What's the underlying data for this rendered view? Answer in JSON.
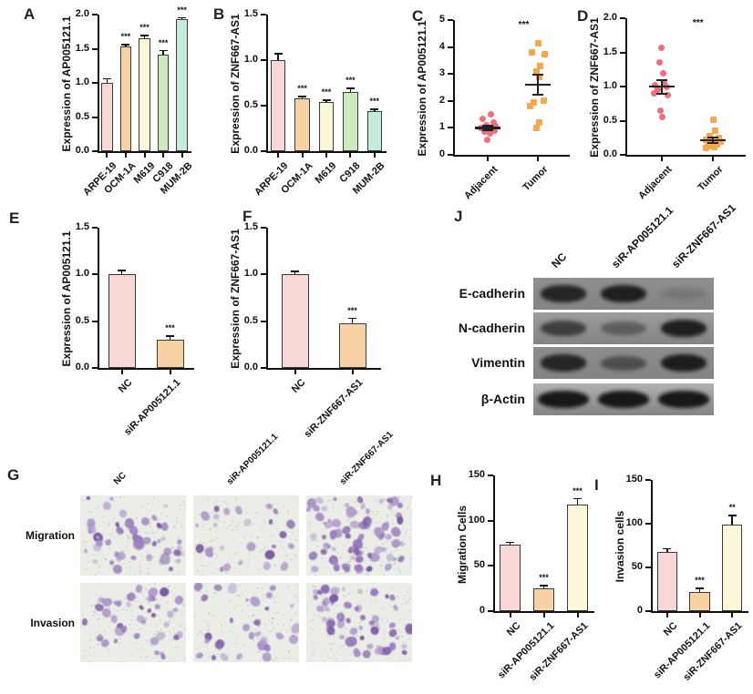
{
  "palette": {
    "pink": "#f8d8d6",
    "peach": "#f8d2a2",
    "cream": "#fbf8d8",
    "green": "#cdeabd",
    "mint": "#c6ebd9",
    "dot_pink": "#f06d7a",
    "dot_orange": "#f4a74b",
    "axis": "#111111",
    "blot_band": "#141414",
    "transwell_bg": "#eaeee6",
    "cell_purple": [
      "#9b7ec2",
      "#8766ad",
      "#a78fc8",
      "#7a58a0",
      "#b49fd0"
    ]
  },
  "figure": {
    "panels": {
      "A": {
        "letter": "A",
        "type": "bar",
        "ylabel": "Expression of AP005121.1",
        "ymax": 2.0,
        "yticks": [
          "0.0",
          "0.5",
          "1.0",
          "1.5",
          "2.0"
        ],
        "categories": [
          "ARPE-19",
          "OCM-1A",
          "M619",
          "C918",
          "MUM-2B"
        ],
        "values": [
          1.0,
          1.53,
          1.66,
          1.41,
          1.93
        ],
        "errors": [
          0.06,
          0.03,
          0.03,
          0.06,
          0.02
        ],
        "sig": [
          "",
          "***",
          "***",
          "***",
          "***"
        ],
        "bar_colors": [
          "pink",
          "peach",
          "cream",
          "green",
          "mint"
        ]
      },
      "B": {
        "letter": "B",
        "type": "bar",
        "ylabel": "Expression of ZNF667-AS1",
        "ymax": 1.5,
        "yticks": [
          "0.0",
          "0.5",
          "1.0",
          "1.5"
        ],
        "categories": [
          "ARPE-19",
          "OCM-1A",
          "M619",
          "C918",
          "MUM-2B"
        ],
        "values": [
          1.0,
          0.58,
          0.54,
          0.65,
          0.44
        ],
        "errors": [
          0.07,
          0.02,
          0.02,
          0.04,
          0.02
        ],
        "sig": [
          "",
          "***",
          "***",
          "***",
          "***"
        ],
        "bar_colors": [
          "pink",
          "peach",
          "cream",
          "green",
          "mint"
        ]
      },
      "C": {
        "letter": "C",
        "type": "scatter",
        "ylabel": "Expression of AP005121.1",
        "ymax": 5,
        "yticks": [
          "0",
          "1",
          "2",
          "3",
          "4",
          "5"
        ],
        "sig": "***",
        "groups": [
          {
            "name": "Adjacent",
            "marker": "circle",
            "color": "dot_pink",
            "mean": 1.0,
            "sem": 0.09,
            "values": [
              1.5,
              1.35,
              1.2,
              1.1,
              1.05,
              1.0,
              0.95,
              0.9,
              0.85,
              0.8,
              0.55
            ],
            "jitter": [
              3,
              -6,
              6,
              -2,
              8,
              -8,
              0,
              7,
              -4,
              2,
              -1
            ]
          },
          {
            "name": "Tumor",
            "marker": "square",
            "color": "dot_orange",
            "mean": 2.6,
            "sem": 0.36,
            "values": [
              4.15,
              3.8,
              3.75,
              3.3,
              3.1,
              2.9,
              2.0,
              1.95,
              1.8,
              1.2,
              1.0
            ],
            "jitter": [
              0,
              -7,
              7,
              2,
              -2,
              1,
              6,
              -5,
              -9,
              1,
              -2
            ]
          }
        ]
      },
      "D": {
        "letter": "D",
        "type": "scatter",
        "ylabel": "Expression of ZNF667-AS1",
        "ymax": 2.0,
        "yticks": [
          "0.0",
          "0.5",
          "1.0",
          "1.5",
          "2.0"
        ],
        "sig": "***",
        "groups": [
          {
            "name": "Adjacent",
            "marker": "circle",
            "color": "dot_pink",
            "mean": 1.0,
            "sem": 0.1,
            "values": [
              1.57,
              1.35,
              1.2,
              1.05,
              1.02,
              1.0,
              0.95,
              0.9,
              0.88,
              0.65,
              0.55
            ],
            "jitter": [
              0,
              -2,
              2,
              3,
              -7,
              6,
              -4,
              -8,
              7,
              -1,
              1
            ]
          },
          {
            "name": "Tumor",
            "marker": "square",
            "color": "dot_orange",
            "mean": 0.22,
            "sem": 0.04,
            "values": [
              0.52,
              0.35,
              0.27,
              0.25,
              0.22,
              0.2,
              0.18,
              0.15,
              0.13,
              0.12,
              0.1
            ],
            "jitter": [
              0,
              2,
              -4,
              6,
              -8,
              8,
              -2,
              4,
              -6,
              1,
              -8
            ]
          }
        ]
      },
      "E": {
        "letter": "E",
        "type": "bar",
        "ylabel": "Expression of AP005121.1",
        "ymax": 1.5,
        "yticks": [
          "0.0",
          "0.5",
          "1.0",
          "1.5"
        ],
        "categories": [
          "NC",
          "siR-AP005121.1"
        ],
        "values": [
          1.0,
          0.3
        ],
        "errors": [
          0.04,
          0.04
        ],
        "sig": [
          "",
          "***"
        ],
        "bar_colors": [
          "pink",
          "peach"
        ]
      },
      "F": {
        "letter": "F",
        "type": "bar",
        "ylabel": "Expression of ZNF667-AS1",
        "ymax": 1.5,
        "yticks": [
          "0.0",
          "0.5",
          "1.0",
          "1.5"
        ],
        "categories": [
          "NC",
          "siR-ZNF667-AS1"
        ],
        "values": [
          1.0,
          0.48
        ],
        "errors": [
          0.03,
          0.05
        ],
        "sig": [
          "",
          "***"
        ],
        "bar_colors": [
          "pink",
          "peach"
        ]
      },
      "G": {
        "letter": "G",
        "type": "transwell",
        "col_labels": [
          "NC",
          "siR-AP005121.1",
          "siR-ZNF667-AS1"
        ],
        "row_labels": [
          "Migration",
          "Invasion"
        ],
        "tiles": [
          [
            {
              "cells": 48
            },
            {
              "cells": 26
            },
            {
              "cells": 80
            }
          ],
          [
            {
              "cells": 40
            },
            {
              "cells": 30
            },
            {
              "cells": 55
            }
          ]
        ]
      },
      "H": {
        "letter": "H",
        "type": "bar",
        "ylabel": "Migration Cells",
        "ymax": 150,
        "yticks": [
          "0",
          "50",
          "100",
          "150"
        ],
        "categories": [
          "NC",
          "siR-AP005121.1",
          "siR-ZNF667-AS1"
        ],
        "values": [
          73,
          25,
          118
        ],
        "errors": [
          3,
          3,
          6
        ],
        "sig": [
          "",
          "***",
          "***"
        ],
        "bar_colors": [
          "pink",
          "peach",
          "cream"
        ]
      },
      "I": {
        "letter": "I",
        "type": "bar",
        "ylabel": "Invasion cells",
        "ymax": 150,
        "yticks": [
          "0",
          "50",
          "100",
          "150"
        ],
        "categories": [
          "NC",
          "siR-AP005121.1",
          "siR-ZNF667-AS1"
        ],
        "values": [
          68,
          22,
          99
        ],
        "errors": [
          3,
          4,
          10
        ],
        "sig": [
          "",
          "***",
          "**"
        ],
        "bar_colors": [
          "pink",
          "peach",
          "cream"
        ]
      },
      "J": {
        "letter": "J",
        "type": "blot",
        "col_labels": [
          "NC",
          "siR-AP005121.1",
          "siR-ZNF667-AS1"
        ],
        "rows": [
          {
            "label": "E-cadherin",
            "bg": "#8f8f8f",
            "bands": [
              0.85,
              0.9,
              0.16
            ]
          },
          {
            "label": "N-cadherin",
            "bg": "#9c9c9c",
            "bands": [
              0.65,
              0.4,
              0.9
            ]
          },
          {
            "label": "Vimentin",
            "bg": "#8d8d8d",
            "bands": [
              0.85,
              0.5,
              0.92
            ]
          },
          {
            "label": "β-Actin",
            "bg": "#b2b2b2",
            "bands": [
              0.97,
              0.97,
              0.97
            ]
          }
        ]
      }
    }
  },
  "chart_data": [
    {
      "panel": "A",
      "type": "bar",
      "title": "",
      "ylabel": "Expression of AP005121.1",
      "ylim": [
        0,
        2.0
      ],
      "categories": [
        "ARPE-19",
        "OCM-1A",
        "M619",
        "C918",
        "MUM-2B"
      ],
      "values": [
        1.0,
        1.53,
        1.66,
        1.41,
        1.93
      ],
      "errors": [
        0.06,
        0.03,
        0.03,
        0.06,
        0.02
      ],
      "significance": [
        "",
        "***",
        "***",
        "***",
        "***"
      ]
    },
    {
      "panel": "B",
      "type": "bar",
      "ylabel": "Expression of ZNF667-AS1",
      "ylim": [
        0,
        1.5
      ],
      "categories": [
        "ARPE-19",
        "OCM-1A",
        "M619",
        "C918",
        "MUM-2B"
      ],
      "values": [
        1.0,
        0.58,
        0.54,
        0.65,
        0.44
      ],
      "errors": [
        0.07,
        0.02,
        0.02,
        0.04,
        0.02
      ],
      "significance": [
        "",
        "***",
        "***",
        "***",
        "***"
      ]
    },
    {
      "panel": "C",
      "type": "scatter",
      "ylabel": "Expression of AP005121.1",
      "ylim": [
        0,
        5
      ],
      "significance": "***",
      "series": [
        {
          "name": "Adjacent",
          "values": [
            1.5,
            1.35,
            1.2,
            1.1,
            1.05,
            1.0,
            0.95,
            0.9,
            0.85,
            0.8,
            0.55
          ],
          "mean": 1.0,
          "sem": 0.09
        },
        {
          "name": "Tumor",
          "values": [
            4.15,
            3.8,
            3.75,
            3.3,
            3.1,
            2.9,
            2.0,
            1.95,
            1.8,
            1.2,
            1.0
          ],
          "mean": 2.6,
          "sem": 0.36
        }
      ]
    },
    {
      "panel": "D",
      "type": "scatter",
      "ylabel": "Expression of ZNF667-AS1",
      "ylim": [
        0,
        2.0
      ],
      "significance": "***",
      "series": [
        {
          "name": "Adjacent",
          "values": [
            1.57,
            1.35,
            1.2,
            1.05,
            1.02,
            1.0,
            0.95,
            0.9,
            0.88,
            0.65,
            0.55
          ],
          "mean": 1.0,
          "sem": 0.1
        },
        {
          "name": "Tumor",
          "values": [
            0.52,
            0.35,
            0.27,
            0.25,
            0.22,
            0.2,
            0.18,
            0.15,
            0.13,
            0.12,
            0.1
          ],
          "mean": 0.22,
          "sem": 0.04
        }
      ]
    },
    {
      "panel": "E",
      "type": "bar",
      "ylabel": "Expression of AP005121.1",
      "ylim": [
        0,
        1.5
      ],
      "categories": [
        "NC",
        "siR-AP005121.1"
      ],
      "values": [
        1.0,
        0.3
      ],
      "errors": [
        0.04,
        0.04
      ],
      "significance": [
        "",
        "***"
      ]
    },
    {
      "panel": "F",
      "type": "bar",
      "ylabel": "Expression of ZNF667-AS1",
      "ylim": [
        0,
        1.5
      ],
      "categories": [
        "NC",
        "siR-ZNF667-AS1"
      ],
      "values": [
        1.0,
        0.48
      ],
      "errors": [
        0.03,
        0.05
      ],
      "significance": [
        "",
        "***"
      ]
    },
    {
      "panel": "H",
      "type": "bar",
      "ylabel": "Migration Cells",
      "ylim": [
        0,
        150
      ],
      "categories": [
        "NC",
        "siR-AP005121.1",
        "siR-ZNF667-AS1"
      ],
      "values": [
        73,
        25,
        118
      ],
      "errors": [
        3,
        3,
        6
      ],
      "significance": [
        "",
        "***",
        "***"
      ]
    },
    {
      "panel": "I",
      "type": "bar",
      "ylabel": "Invasion cells",
      "ylim": [
        0,
        150
      ],
      "categories": [
        "NC",
        "siR-AP005121.1",
        "siR-ZNF667-AS1"
      ],
      "values": [
        68,
        22,
        99
      ],
      "errors": [
        3,
        4,
        10
      ],
      "significance": [
        "",
        "***",
        "**"
      ]
    }
  ]
}
